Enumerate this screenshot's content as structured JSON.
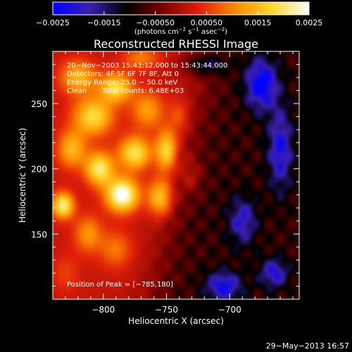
{
  "chart_data": {
    "type": "heatmap",
    "title": "Reconstructed RHESSI Image",
    "xlabel": "Heliocentric X (arcsec)",
    "ylabel": "Heliocentric Y (arcsec)",
    "xlim": [
      -840,
      -645
    ],
    "ylim": [
      100,
      290
    ],
    "x_ticks": [
      -800,
      -750,
      -700
    ],
    "x_tick_labels": [
      "−800",
      "−750",
      "−700"
    ],
    "y_ticks": [
      150,
      200,
      250
    ],
    "y_tick_labels": [
      "150",
      "200",
      "250"
    ],
    "colorbar": {
      "range": [
        -0.0025,
        0.0025
      ],
      "ticks": [
        -0.0025,
        -0.0015,
        -0.0005,
        0.0005,
        0.0015,
        0.0025
      ],
      "tick_labels": [
        "−0.0025",
        "−0.0015",
        "−0.00050",
        "0.00050",
        "0.0015",
        "0.0025"
      ],
      "unit_label_base": "(photons cm",
      "unit_sup1": "−2",
      "unit_mid": " s",
      "unit_sup2": "−1",
      "unit_end": " asec",
      "unit_sup3": "−2",
      "unit_close": ")",
      "colors": [
        "#0000ff",
        "#3a1fb0",
        "#000000",
        "#7a0000",
        "#e0200a",
        "#ff8c00",
        "#ffd830",
        "#ffffff"
      ]
    },
    "annotations": {
      "time_range": "20−Nov−2003 15:43:12.000 to 15:43:44.000",
      "detectors": "Detectors: 4F 5F 6F 7F 8F, Att 0",
      "energy_range": "Energy Range: 25.0 − 50.0 keV",
      "algorithm": "Clean",
      "total_counts": "Total counts: 6.48E+03",
      "peak_position": "Position of Peak = [−785,180]"
    },
    "sources": [
      {
        "x": -785,
        "y": 180,
        "level": 0.0025,
        "sx": 9,
        "sy": 9
      },
      {
        "x": -803,
        "y": 200,
        "level": 0.0019,
        "sx": 8,
        "sy": 9
      },
      {
        "x": -832,
        "y": 172,
        "level": 0.002,
        "sx": 6,
        "sy": 7
      },
      {
        "x": -775,
        "y": 212,
        "level": 0.0018,
        "sx": 9,
        "sy": 9
      },
      {
        "x": -808,
        "y": 240,
        "level": 0.0017,
        "sx": 11,
        "sy": 10
      },
      {
        "x": -790,
        "y": 262,
        "level": 0.0017,
        "sx": 9,
        "sy": 8
      },
      {
        "x": -750,
        "y": 214,
        "level": 0.0017,
        "sx": 6,
        "sy": 11
      },
      {
        "x": -755,
        "y": 178,
        "level": 0.0015,
        "sx": 7,
        "sy": 10
      },
      {
        "x": -820,
        "y": 270,
        "level": 0.0013,
        "sx": 10,
        "sy": 9
      },
      {
        "x": -825,
        "y": 215,
        "level": 0.0013,
        "sx": 8,
        "sy": 10
      },
      {
        "x": -812,
        "y": 150,
        "level": 0.001,
        "sx": 8,
        "sy": 10
      },
      {
        "x": -790,
        "y": 138,
        "level": 0.0008,
        "sx": 9,
        "sy": 10
      },
      {
        "x": -765,
        "y": 245,
        "level": 0.0011,
        "sx": 9,
        "sy": 10
      },
      {
        "x": -740,
        "y": 240,
        "level": 0.0006,
        "sx": 6,
        "sy": 10
      },
      {
        "x": -730,
        "y": 195,
        "level": 0.0005,
        "sx": 6,
        "sy": 10
      },
      {
        "x": -770,
        "y": 285,
        "level": 0.0008,
        "sx": 10,
        "sy": 6
      },
      {
        "x": -830,
        "y": 120,
        "level": 0.0004,
        "sx": 8,
        "sy": 10
      },
      {
        "x": -675,
        "y": 265,
        "level": -0.0018,
        "sx": 9,
        "sy": 14
      },
      {
        "x": -690,
        "y": 160,
        "level": -0.0012,
        "sx": 8,
        "sy": 13
      },
      {
        "x": -660,
        "y": 215,
        "level": -0.0014,
        "sx": 7,
        "sy": 22
      },
      {
        "x": -705,
        "y": 110,
        "level": -0.0015,
        "sx": 10,
        "sy": 8
      },
      {
        "x": -720,
        "y": 280,
        "level": -0.0011,
        "sx": 12,
        "sy": 6
      },
      {
        "x": -665,
        "y": 120,
        "level": -0.0013,
        "sx": 8,
        "sy": 8
      }
    ],
    "background_level": -0.0008
  },
  "plot_date": "29−May−2013 16:57"
}
